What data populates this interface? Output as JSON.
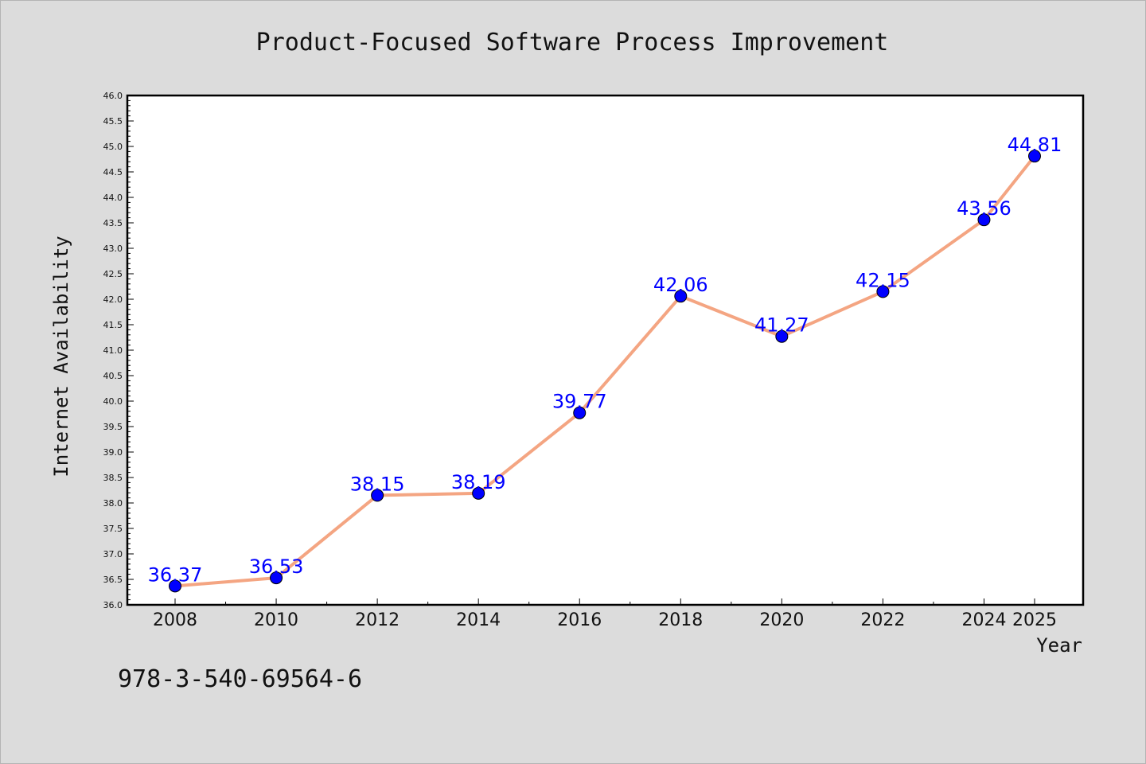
{
  "chart_data": {
    "type": "line",
    "title": "Product-Focused Software Process Improvement",
    "xlabel": "Year",
    "ylabel": "Internet Availability",
    "x": [
      2008,
      2010,
      2012,
      2014,
      2016,
      2018,
      2020,
      2022,
      2024,
      2025
    ],
    "x_tick_labels": [
      "2008",
      "2010",
      "2012",
      "2014",
      "2016",
      "2018",
      "2020",
      "2022",
      "2024",
      "2025"
    ],
    "values": [
      36.37,
      36.53,
      38.15,
      38.19,
      39.77,
      42.06,
      41.27,
      42.15,
      43.56,
      44.81
    ],
    "data_labels": [
      "36.37",
      "36.53",
      "38.15",
      "38.19",
      "39.77",
      "42.06",
      "41.27",
      "42.15",
      "43.56",
      "44.81"
    ],
    "ylim": [
      36.0,
      46.0
    ],
    "y_ticks": [
      "36.0",
      "36.5",
      "37.0",
      "37.5",
      "38.0",
      "38.5",
      "39.0",
      "39.5",
      "40.0",
      "40.5",
      "41.0",
      "41.5",
      "42.0",
      "42.5",
      "43.0",
      "43.5",
      "44.0",
      "44.5",
      "45.0",
      "45.5",
      "46.0"
    ],
    "grid": false,
    "colors": {
      "line": "#f4a582",
      "marker": "#0000ff",
      "data_label": "#0000ff",
      "background": "#dcdcdc",
      "plot_background": "#ffffff"
    }
  },
  "footer": {
    "isbn": "978-3-540-69564-6"
  }
}
